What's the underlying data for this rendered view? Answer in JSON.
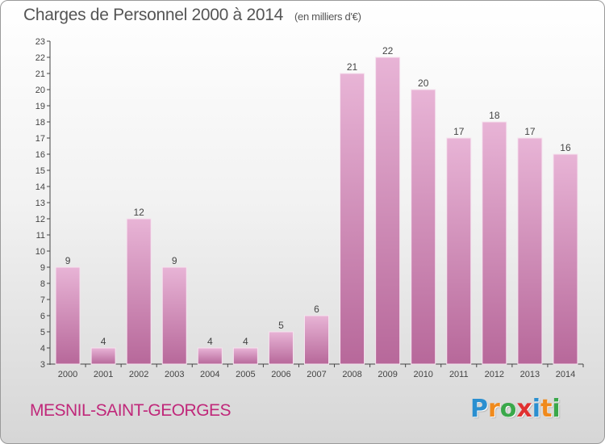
{
  "title": "Charges de Personnel 2000 à 2014",
  "unit_note": "(en milliers d'€)",
  "commune": "MESNIL-SAINT-GEORGES",
  "logo": {
    "letters": [
      "P",
      "r",
      "o",
      "x",
      "i",
      "t",
      "i"
    ],
    "colors": [
      "#2a8fd0",
      "#f08a1c",
      "#3aa84a",
      "#e03030",
      "#2a8fd0",
      "#f08a1c",
      "#3aa84a"
    ]
  },
  "colors": {
    "bar_light": "#e8b4d6",
    "bar_dark": "#b7689a",
    "text": "#555555",
    "commune": "#c0287a"
  },
  "chart_data": {
    "type": "bar",
    "categories": [
      "2000",
      "2001",
      "2002",
      "2003",
      "2004",
      "2005",
      "2006",
      "2007",
      "2008",
      "2009",
      "2010",
      "2011",
      "2012",
      "2013",
      "2014"
    ],
    "values": [
      9,
      4,
      12,
      9,
      4,
      4,
      5,
      6,
      21,
      22,
      20,
      17,
      18,
      17,
      16
    ],
    "data_labels": [
      "9",
      "4",
      "12",
      "9",
      "4",
      "4",
      "5",
      "6",
      "21",
      "22",
      "20",
      "17",
      "18",
      "17",
      "16"
    ],
    "y_ticks": [
      "3",
      "4",
      "5",
      "6",
      "7",
      "8",
      "9",
      "10",
      "11",
      "12",
      "13",
      "14",
      "15",
      "16",
      "17",
      "18",
      "19",
      "20",
      "21",
      "22",
      "23"
    ],
    "ylim": [
      3,
      23
    ],
    "title": "Charges de Personnel 2000 à 2014",
    "grid": false
  }
}
